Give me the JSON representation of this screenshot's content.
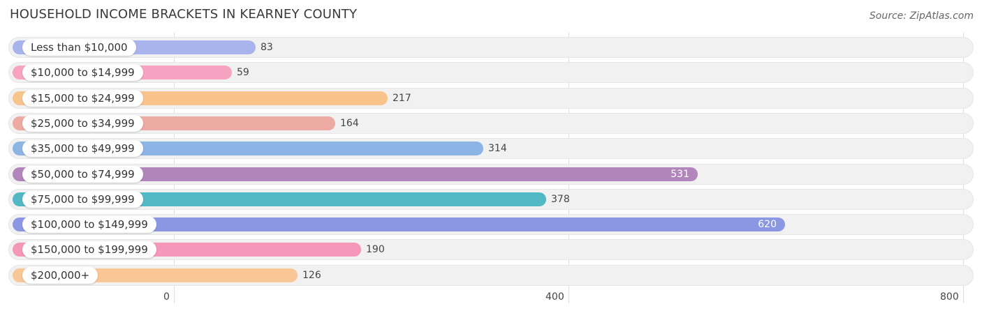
{
  "chart_data": {
    "type": "bar",
    "orientation": "horizontal",
    "title": "HOUSEHOLD INCOME BRACKETS IN KEARNEY COUNTY",
    "source": "Source: ZipAtlas.com",
    "categories": [
      "Less than $10,000",
      "$10,000 to $14,999",
      "$15,000 to $24,999",
      "$25,000 to $34,999",
      "$35,000 to $49,999",
      "$50,000 to $74,999",
      "$75,000 to $99,999",
      "$100,000 to $149,999",
      "$150,000 to $199,999",
      "$200,000+"
    ],
    "values": [
      83,
      59,
      217,
      164,
      314,
      531,
      378,
      620,
      190,
      126
    ],
    "value_labels": [
      "83",
      "59",
      "217",
      "164",
      "314",
      "531",
      "378",
      "620",
      "190",
      "126"
    ],
    "colors": [
      "#aab4ec",
      "#f7a3c2",
      "#f9c48c",
      "#ecaaa3",
      "#8cb5e6",
      "#b286bd",
      "#52b8c4",
      "#8b97e2",
      "#f597b8",
      "#f9c795"
    ],
    "xlim": [
      0,
      800
    ],
    "xticks": [
      "0",
      "400",
      "800"
    ],
    "grid": true
  }
}
